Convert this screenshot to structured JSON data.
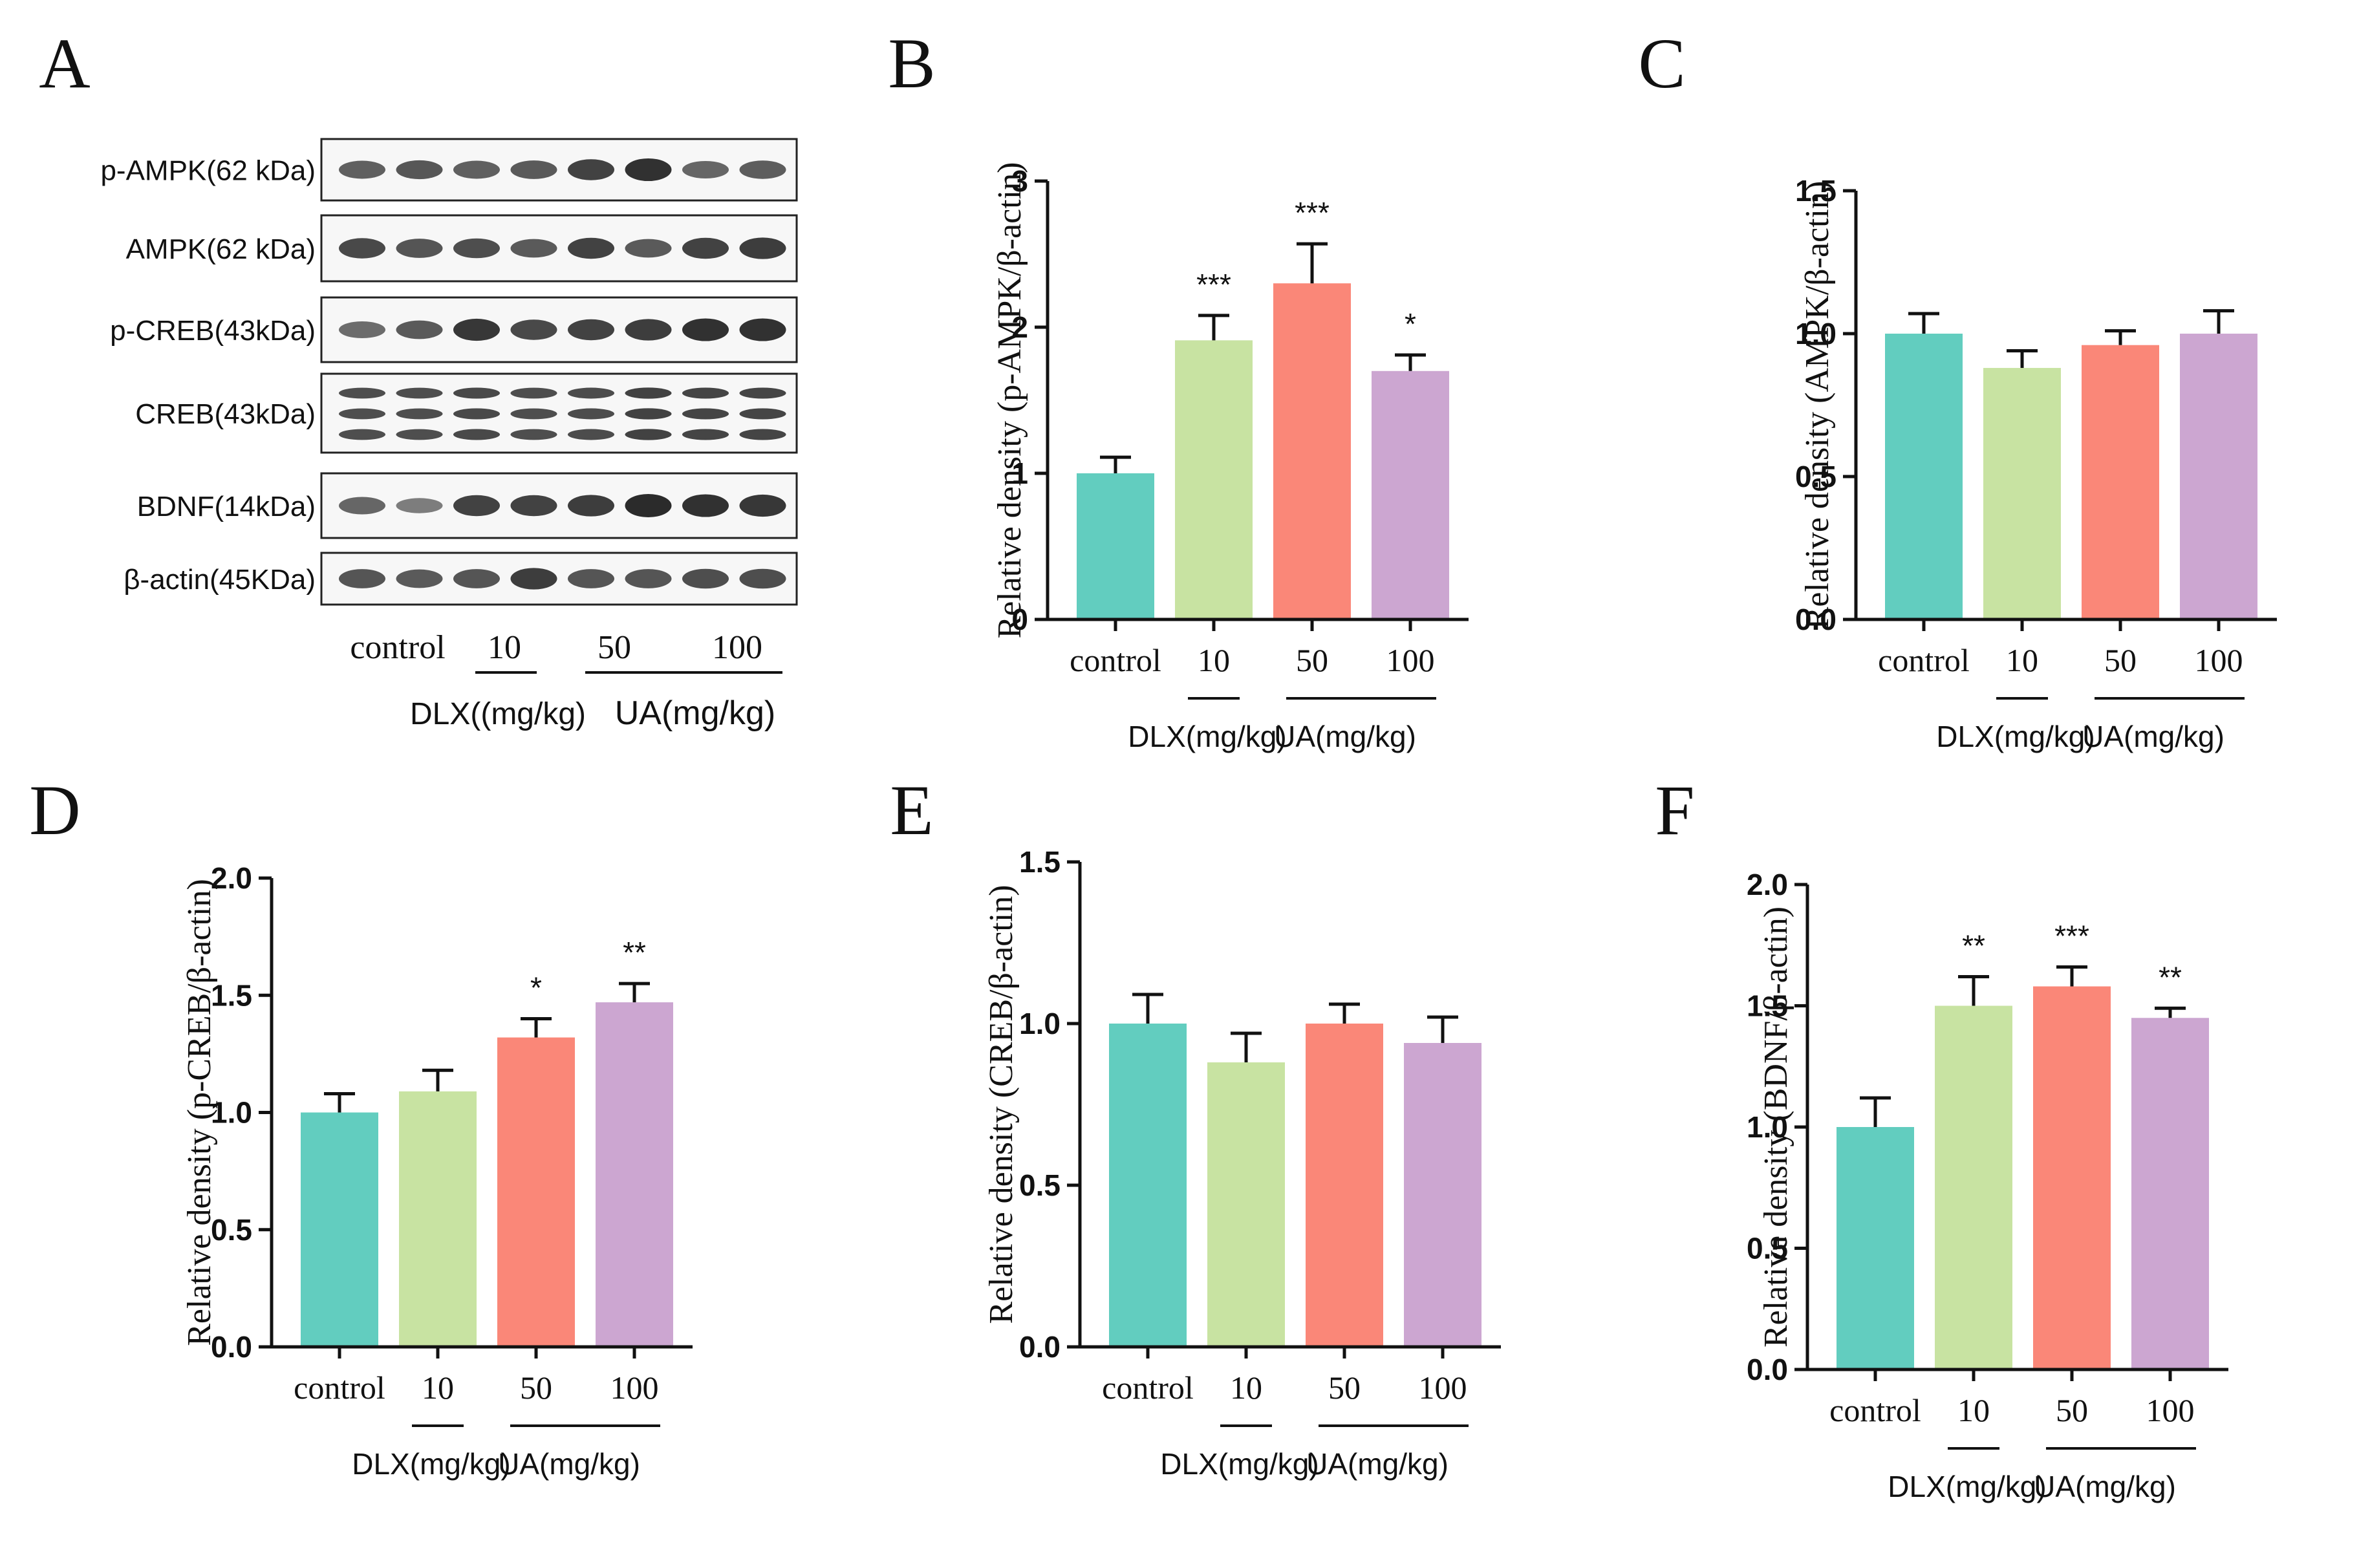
{
  "colors": {
    "control": "#62cdbf",
    "dlx": "#c8e3a2",
    "ua50": "#fa8778",
    "ua100": "#cca6d1",
    "axis": "#111111",
    "text": "#111111"
  },
  "western_blot": {
    "panel_letter": "A",
    "rows": [
      {
        "label": "p-AMPK(62 kDa)",
        "intensity": [
          0.55,
          0.62,
          0.55,
          0.6,
          0.8,
          0.95,
          0.5,
          0.58
        ]
      },
      {
        "label": "AMPK(62 kDa)",
        "intensity": [
          0.75,
          0.65,
          0.7,
          0.6,
          0.8,
          0.6,
          0.8,
          0.85
        ]
      },
      {
        "label": "p-CREB(43kDa)",
        "intensity": [
          0.45,
          0.6,
          0.9,
          0.75,
          0.8,
          0.85,
          0.95,
          0.95
        ]
      },
      {
        "label": "CREB(43kDa)",
        "intensity": [
          0.7,
          0.7,
          0.75,
          0.7,
          0.72,
          0.8,
          0.78,
          0.78
        ]
      },
      {
        "label": "BDNF(14kDa)",
        "intensity": [
          0.5,
          0.3,
          0.8,
          0.8,
          0.85,
          1.0,
          0.95,
          0.9
        ]
      },
      {
        "label": "β-actin(45KDa)",
        "intensity": [
          0.65,
          0.6,
          0.65,
          0.85,
          0.65,
          0.65,
          0.7,
          0.7
        ]
      }
    ],
    "lane_labels": [
      "control",
      "10",
      "50",
      "100"
    ],
    "group_labels": [
      "DLX((mg/kg)",
      "UA(mg/kg)"
    ]
  },
  "chart_data": [
    {
      "panel": "B",
      "type": "bar",
      "categories": [
        "control",
        "10",
        "50",
        "100"
      ],
      "values": [
        1.0,
        1.91,
        2.3,
        1.7
      ],
      "errors": [
        0.11,
        0.17,
        0.27,
        0.11
      ],
      "significance": [
        "",
        "***",
        "***",
        "*"
      ],
      "ylabel": "Relative density (p-AMPK/β-actin)",
      "ylim": [
        0,
        3
      ],
      "yticks": [
        "0",
        "1",
        "2",
        "3"
      ],
      "groups": [
        "DLX(mg/kg)",
        "UA(mg/kg)"
      ]
    },
    {
      "panel": "C",
      "type": "bar",
      "categories": [
        "control",
        "10",
        "50",
        "100"
      ],
      "values": [
        1.0,
        0.88,
        0.96,
        1.0
      ],
      "errors": [
        0.07,
        0.06,
        0.05,
        0.08
      ],
      "significance": [
        "",
        "",
        "",
        ""
      ],
      "ylabel": "Relative density (AMPK/β-actin)",
      "ylim": [
        0,
        1.5
      ],
      "yticks": [
        "0.0",
        "0.5",
        "1.0",
        "1.5"
      ],
      "groups": [
        "DLX(mg/kg)",
        "UA(mg/kg)"
      ]
    },
    {
      "panel": "D",
      "type": "bar",
      "categories": [
        "control",
        "10",
        "50",
        "100"
      ],
      "values": [
        1.0,
        1.09,
        1.32,
        1.47
      ],
      "errors": [
        0.08,
        0.09,
        0.08,
        0.08
      ],
      "significance": [
        "",
        "",
        "*",
        "**"
      ],
      "ylabel": "Relative density (p-CREB/β-actin)",
      "ylim": [
        0,
        2.0
      ],
      "yticks": [
        "0.0",
        "0.5",
        "1.0",
        "1.5",
        "2.0"
      ],
      "groups": [
        "DLX(mg/kg)",
        "UA(mg/kg)"
      ]
    },
    {
      "panel": "E",
      "type": "bar",
      "categories": [
        "control",
        "10",
        "50",
        "100"
      ],
      "values": [
        1.0,
        0.88,
        1.0,
        0.94
      ],
      "errors": [
        0.09,
        0.09,
        0.06,
        0.08
      ],
      "significance": [
        "",
        "",
        "",
        ""
      ],
      "ylabel": "Relative density (CREB/β-actin)",
      "ylim": [
        0,
        1.5
      ],
      "yticks": [
        "0.0",
        "0.5",
        "1.0",
        "1.5"
      ],
      "groups": [
        "DLX(mg/kg)",
        "UA(mg/kg)"
      ]
    },
    {
      "panel": "F",
      "type": "bar",
      "categories": [
        "control",
        "10",
        "50",
        "100"
      ],
      "values": [
        1.0,
        1.5,
        1.58,
        1.45
      ],
      "errors": [
        0.12,
        0.12,
        0.08,
        0.04
      ],
      "significance": [
        "",
        "**",
        "***",
        "**"
      ],
      "ylabel": "Relative density (BDNF/β-actin)",
      "ylim": [
        0,
        2.0
      ],
      "yticks": [
        "0.0",
        "0.5",
        "1.0",
        "1.5",
        "2.0"
      ],
      "groups": [
        "DLX(mg/kg)",
        "UA(mg/kg)"
      ]
    }
  ]
}
